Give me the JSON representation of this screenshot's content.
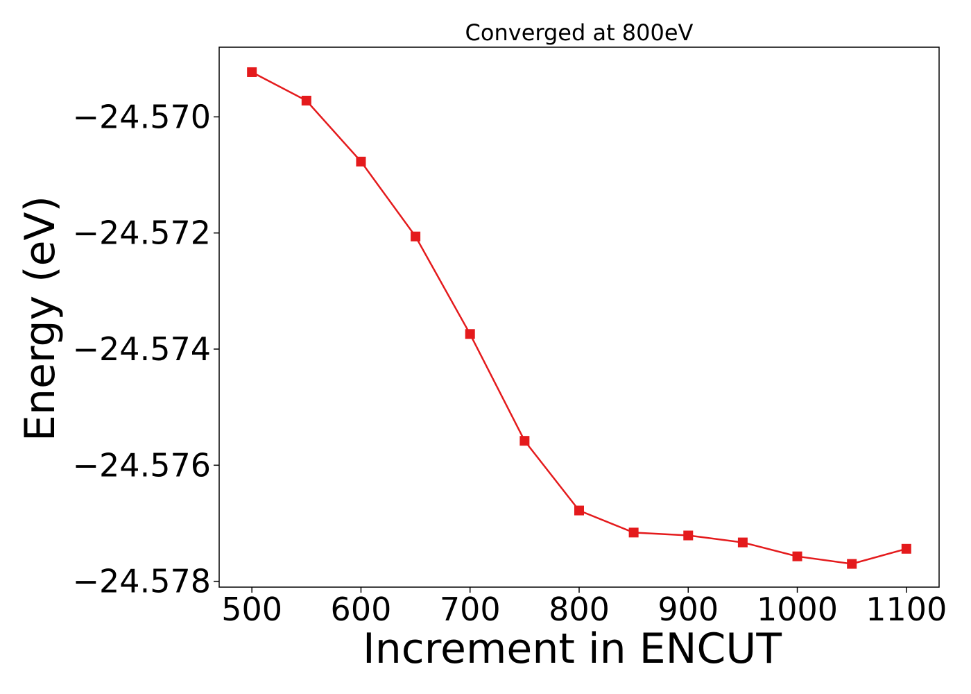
{
  "chart_data": {
    "type": "line",
    "title": "Converged at 800eV",
    "xlabel": "Increment in ENCUT",
    "ylabel": "Energy (eV)",
    "xlim": [
      470,
      1130
    ],
    "ylim": [
      -24.5781,
      -24.5688
    ],
    "x_ticks": [
      500,
      600,
      700,
      800,
      900,
      1000,
      1100
    ],
    "x_tick_labels": [
      "500",
      "600",
      "700",
      "800",
      "900",
      "1000",
      "1100"
    ],
    "y_ticks": [
      -24.57,
      -24.572,
      -24.574,
      -24.576,
      -24.578
    ],
    "y_tick_labels": [
      "−24.570",
      "−24.572",
      "−24.574",
      "−24.576",
      "−24.578"
    ],
    "grid": false,
    "legend": "none",
    "series": [
      {
        "color": "#e41a1c",
        "marker": "square",
        "x": [
          500,
          550,
          600,
          650,
          700,
          750,
          800,
          850,
          900,
          950,
          1000,
          1050,
          1100
        ],
        "y": [
          -24.56923,
          -24.56972,
          -24.57077,
          -24.57206,
          -24.57374,
          -24.57558,
          -24.57678,
          -24.57716,
          -24.57721,
          -24.57733,
          -24.57757,
          -24.5777,
          -24.57744
        ]
      }
    ]
  }
}
